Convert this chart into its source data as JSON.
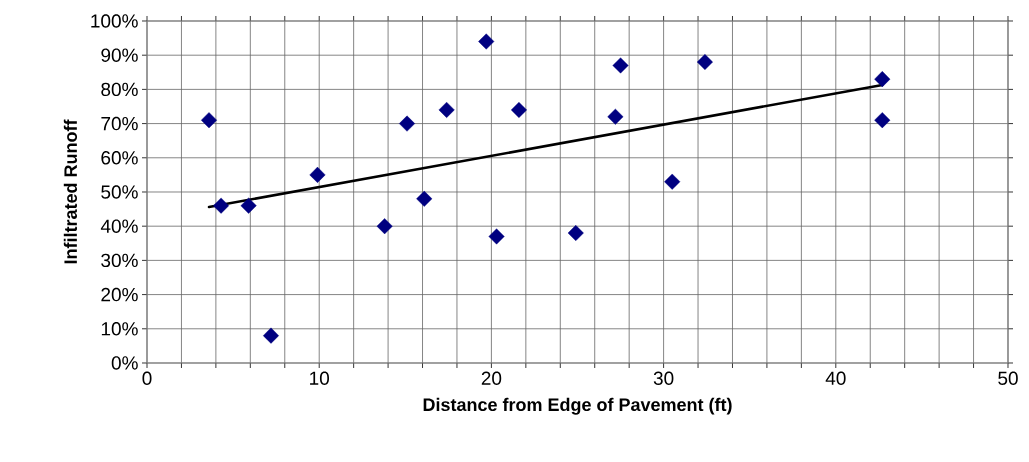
{
  "chart_data": {
    "type": "scatter",
    "xlabel": "Distance from Edge of Pavement (ft)",
    "ylabel": "Infiltrated Runoff",
    "series": [
      {
        "color": "#000080",
        "marker": "diamond",
        "x": [
          3.6,
          4.3,
          5.9,
          7.2,
          9.9,
          13.8,
          15.1,
          16.1,
          17.4,
          19.7,
          20.3,
          21.6,
          24.9,
          27.2,
          27.5,
          30.5,
          32.4,
          42.7,
          42.7
        ],
        "values": [
          71,
          46,
          46,
          8,
          55,
          40,
          70,
          48,
          74,
          94,
          37,
          74,
          38,
          72,
          87,
          53,
          88,
          83,
          71
        ]
      },
      {
        "type": "line",
        "color": "#000000",
        "marker": "none",
        "line_style": "solid",
        "x": [
          3.6,
          42.7
        ],
        "values": [
          45.6,
          81.3
        ]
      }
    ],
    "xlim": [
      0,
      50
    ],
    "ylim": [
      0,
      100
    ],
    "xticks": [
      0,
      {
        "value": 2,
        "label": null
      },
      {
        "value": 4,
        "label": null
      },
      {
        "value": 6,
        "label": null
      },
      {
        "value": 8,
        "label": null
      },
      10,
      {
        "value": 12,
        "label": null
      },
      {
        "value": 14,
        "label": null
      },
      {
        "value": 16,
        "label": null
      },
      {
        "value": 18,
        "label": null
      },
      20,
      {
        "value": 22,
        "label": null
      },
      {
        "value": 24,
        "label": null
      },
      {
        "value": 26,
        "label": null
      },
      {
        "value": 28,
        "label": null
      },
      30,
      {
        "value": 32,
        "label": null
      },
      {
        "value": 34,
        "label": null
      },
      {
        "value": 36,
        "label": null
      },
      {
        "value": 38,
        "label": null
      },
      40,
      {
        "value": 42,
        "label": null
      },
      {
        "value": 44,
        "label": null
      },
      {
        "value": 46,
        "label": null
      },
      {
        "value": 48,
        "label": null
      },
      50
    ],
    "yticks": [
      {
        "value": 0,
        "label": "0%"
      },
      {
        "value": 10,
        "label": "10%"
      },
      {
        "value": 20,
        "label": "20%"
      },
      {
        "value": 30,
        "label": "30%"
      },
      {
        "value": 40,
        "label": "40%"
      },
      {
        "value": 50,
        "label": "50%"
      },
      {
        "value": 60,
        "label": "60%"
      },
      {
        "value": 70,
        "label": "70%"
      },
      {
        "value": 80,
        "label": "80%"
      },
      {
        "value": 90,
        "label": "90%"
      },
      {
        "value": 100,
        "label": "100%"
      }
    ],
    "grid": true
  }
}
